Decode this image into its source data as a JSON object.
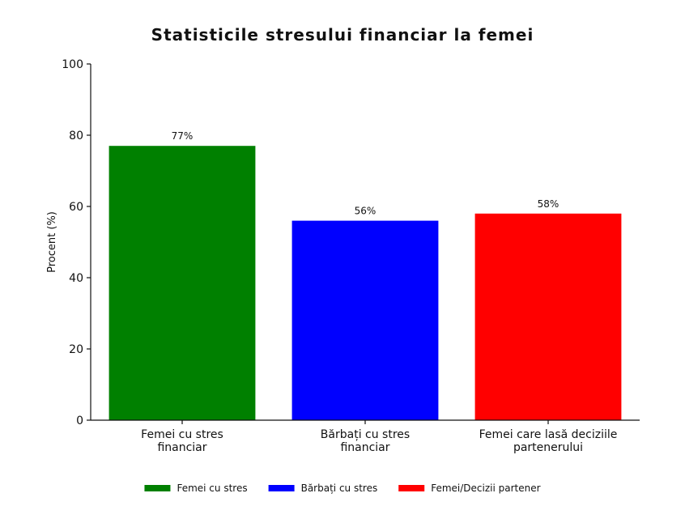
{
  "chart_data": {
    "type": "bar",
    "title": "Statisticile stresului financiar la femei",
    "ylabel": "Procent (%)",
    "xlabel": "",
    "ylim": [
      0,
      100
    ],
    "yticks": [
      0,
      20,
      40,
      60,
      80,
      100
    ],
    "categories": [
      [
        "Femei cu stres",
        "financiar"
      ],
      [
        "Bărbați cu stres",
        "financiar"
      ],
      [
        "Femei care lasă deciziile",
        "partenerului"
      ]
    ],
    "values": [
      77,
      56,
      58
    ],
    "value_labels": [
      "77%",
      "56%",
      "58%"
    ],
    "colors": [
      "#008000",
      "#0000ff",
      "#ff0000"
    ],
    "legend": {
      "placement": "bottom",
      "entries": [
        "Femei cu stres",
        "Bărbați cu stres",
        "Femei/Decizii partener"
      ]
    },
    "grid": false
  }
}
